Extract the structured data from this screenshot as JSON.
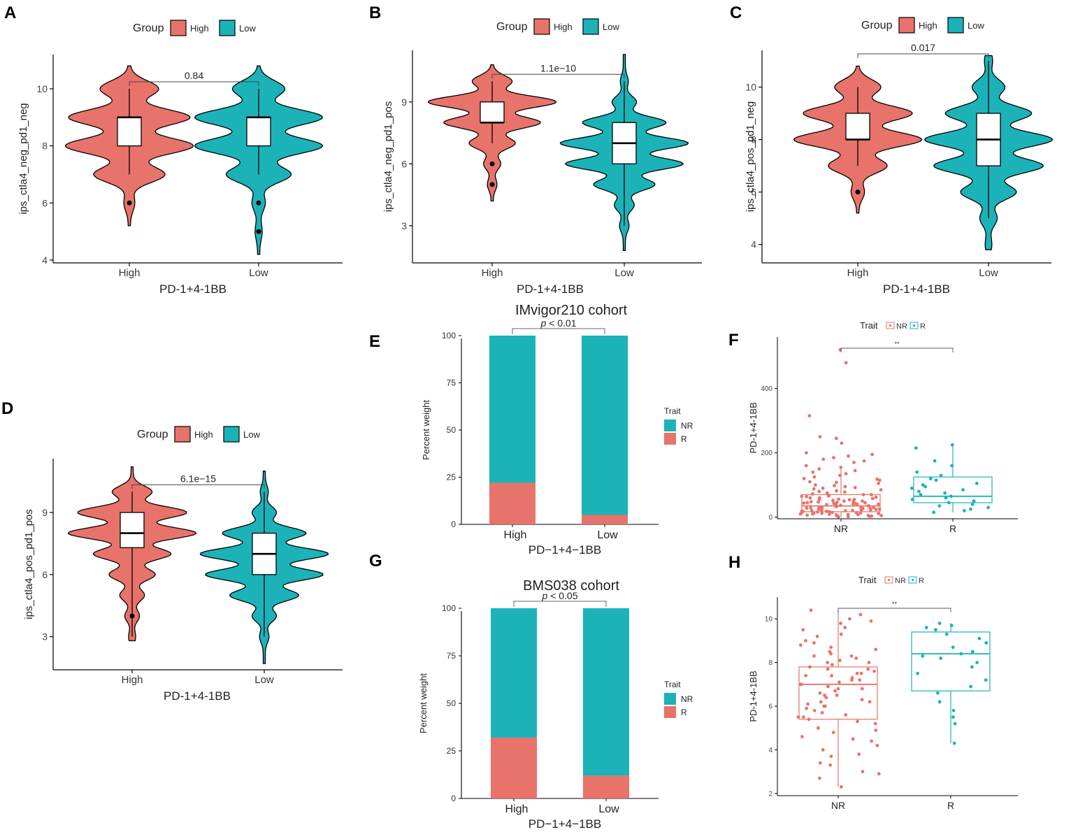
{
  "colors": {
    "high": "#E8736A",
    "low": "#1BB3B8",
    "nr": "#E8736A",
    "r": "#1BB3B8"
  },
  "violin_panels": [
    {
      "id": "A",
      "ylabel": "ips_ctla4_neg_pd1_neg",
      "xlabel": "PD-1+4-1BB",
      "legend": {
        "title": "Group",
        "items": [
          "High",
          "Low"
        ]
      },
      "categories": [
        "High",
        "Low"
      ],
      "yticks": [
        4,
        6,
        8,
        10
      ],
      "ylim": [
        3.9,
        11.2
      ],
      "pvalue": "0.84",
      "groups": [
        {
          "name": "High",
          "q1": 8,
          "median": 9,
          "q3": 9,
          "whisker_low": 7,
          "whisker_high": 10,
          "outliers": [
            6
          ],
          "min": 5.2,
          "max": 10.8,
          "modes": [
            [
              6,
              0.07
            ],
            [
              7,
              0.55
            ],
            [
              8,
              1.0
            ],
            [
              9,
              0.95
            ],
            [
              10,
              0.45
            ]
          ]
        },
        {
          "name": "Low",
          "q1": 8,
          "median": 9,
          "q3": 9,
          "whisker_low": 7,
          "whisker_high": 10,
          "outliers": [
            6,
            5
          ],
          "min": 4.2,
          "max": 10.8,
          "modes": [
            [
              5,
              0.04
            ],
            [
              6,
              0.09
            ],
            [
              7,
              0.5
            ],
            [
              8,
              1.0
            ],
            [
              9,
              1.0
            ],
            [
              10,
              0.4
            ]
          ]
        }
      ]
    },
    {
      "id": "B",
      "ylabel": "ips_ctla4_neg_pd1_pos",
      "xlabel": "PD-1+4-1BB",
      "legend": {
        "title": "Group",
        "items": [
          "High",
          "Low"
        ]
      },
      "categories": [
        "High",
        "Low"
      ],
      "yticks": [
        3,
        6,
        9
      ],
      "ylim": [
        1.2,
        11.5
      ],
      "pvalue": "1.1e−10",
      "groups": [
        {
          "name": "High",
          "q1": 8,
          "median": 8,
          "q3": 9,
          "whisker_low": 7,
          "whisker_high": 10,
          "outliers": [
            6,
            5
          ],
          "min": 4.2,
          "max": 10.8,
          "modes": [
            [
              5,
              0.06
            ],
            [
              6,
              0.12
            ],
            [
              7,
              0.35
            ],
            [
              8,
              0.75
            ],
            [
              9,
              1.0
            ],
            [
              10,
              0.3
            ]
          ]
        },
        {
          "name": "Low",
          "q1": 6,
          "median": 7,
          "q3": 8,
          "whisker_low": 3,
          "whisker_high": 10,
          "outliers": [],
          "min": 1.8,
          "max": 11.3,
          "modes": [
            [
              3,
              0.05
            ],
            [
              4,
              0.12
            ],
            [
              5,
              0.4
            ],
            [
              6,
              0.78
            ],
            [
              7,
              0.85
            ],
            [
              8,
              0.55
            ],
            [
              9,
              0.15
            ],
            [
              10,
              0.04
            ]
          ]
        }
      ]
    },
    {
      "id": "C",
      "ylabel": "ips_ctla4_pos_pd1_neg",
      "xlabel": "PD-1+4-1BB",
      "legend": {
        "title": "Group",
        "items": [
          "High",
          "Low"
        ]
      },
      "categories": [
        "High",
        "Low"
      ],
      "yticks": [
        4,
        6,
        8,
        10
      ],
      "ylim": [
        3.3,
        11.4
      ],
      "pvalue": "0.017",
      "groups": [
        {
          "name": "High",
          "q1": 8,
          "median": 8,
          "q3": 9,
          "whisker_low": 7,
          "whisker_high": 10,
          "outliers": [
            6
          ],
          "min": 5.2,
          "max": 10.8,
          "modes": [
            [
              6,
              0.09
            ],
            [
              7,
              0.45
            ],
            [
              8,
              1.0
            ],
            [
              9,
              0.85
            ],
            [
              10,
              0.35
            ]
          ]
        },
        {
          "name": "Low",
          "q1": 7,
          "median": 8,
          "q3": 9,
          "whisker_low": 5,
          "whisker_high": 11,
          "outliers": [],
          "min": 3.8,
          "max": 11.2,
          "modes": [
            [
              4,
              0.03
            ],
            [
              5,
              0.1
            ],
            [
              6,
              0.35
            ],
            [
              7,
              0.7
            ],
            [
              8,
              0.82
            ],
            [
              9,
              0.55
            ],
            [
              10,
              0.2
            ],
            [
              11,
              0.04
            ]
          ]
        }
      ]
    },
    {
      "id": "D",
      "ylabel": "ips_ctla4_pos_pd1_pos",
      "xlabel": "PD-1+4-1BB",
      "legend": {
        "title": "Group",
        "items": [
          "High",
          "Low"
        ]
      },
      "categories": [
        "High",
        "Low"
      ],
      "yticks": [
        3,
        6,
        9
      ],
      "ylim": [
        1.4,
        11.6
      ],
      "pvalue": "6.1e−15",
      "groups": [
        {
          "name": "High",
          "q1": 7.3,
          "median": 8,
          "q3": 9,
          "whisker_low": 3,
          "whisker_high": 10,
          "outliers": [
            4
          ],
          "min": 2.8,
          "max": 11.2,
          "modes": [
            [
              3,
              0.04
            ],
            [
              4,
              0.1
            ],
            [
              5,
              0.18
            ],
            [
              6,
              0.35
            ],
            [
              7,
              0.6
            ],
            [
              8,
              1.0
            ],
            [
              9,
              0.85
            ],
            [
              10,
              0.3
            ]
          ]
        },
        {
          "name": "Low",
          "q1": 6,
          "median": 7,
          "q3": 8,
          "whisker_low": 3,
          "whisker_high": 10,
          "outliers": [],
          "min": 1.7,
          "max": 11.0,
          "modes": [
            [
              3,
              0.05
            ],
            [
              4,
              0.15
            ],
            [
              5,
              0.45
            ],
            [
              6,
              0.78
            ],
            [
              7,
              0.85
            ],
            [
              8,
              0.55
            ],
            [
              9,
              0.15
            ],
            [
              10,
              0.04
            ]
          ]
        }
      ]
    }
  ],
  "bar_panels": [
    {
      "id": "E",
      "title": "IMvigor210 cohort",
      "ylabel": "Percent weight",
      "xlabel": "PD−1+4−1BB",
      "categories": [
        "High",
        "Low"
      ],
      "yticks": [
        0,
        25,
        50,
        75,
        100
      ],
      "ylim": [
        0,
        100
      ],
      "p_italic": "p",
      "p_rest": " < 0.01",
      "legend": {
        "title": "Trait",
        "items": [
          "NR",
          "R"
        ]
      },
      "series": [
        {
          "name": "R",
          "values": [
            22,
            5
          ]
        },
        {
          "name": "NR",
          "values": [
            78,
            95
          ]
        }
      ]
    },
    {
      "id": "G",
      "title": "BMS038 cohort",
      "ylabel": "Percent weight",
      "xlabel": "PD−1+4−1BB",
      "categories": [
        "High",
        "Low"
      ],
      "yticks": [
        0,
        25,
        50,
        75,
        100
      ],
      "ylim": [
        0,
        100
      ],
      "p_italic": "p",
      "p_rest": " < 0.05",
      "legend": {
        "title": "Trait",
        "items": [
          "NR",
          "R"
        ]
      },
      "series": [
        {
          "name": "R",
          "values": [
            32,
            12
          ]
        },
        {
          "name": "NR",
          "values": [
            68,
            88
          ]
        }
      ]
    }
  ],
  "box_panels": [
    {
      "id": "F",
      "ylabel": "PD-1+4-1BB",
      "legend": {
        "title": "Trait",
        "items": [
          "NR",
          "R"
        ]
      },
      "categories": [
        "NR",
        "R"
      ],
      "yticks": [
        0,
        200,
        400
      ],
      "ylim": [
        -5,
        560
      ],
      "sig": "**",
      "groups": [
        {
          "name": "NR",
          "q1": 17,
          "median": 35,
          "q3": 70,
          "whisker_low": 0,
          "whisker_high": 150,
          "points": [
            520,
            480,
            315,
            250,
            245,
            230,
            200,
            195,
            190,
            185,
            180,
            175,
            170,
            160,
            155,
            150,
            145,
            140,
            135,
            130,
            125,
            120,
            118,
            115,
            110,
            108,
            105,
            100,
            98,
            95,
            92,
            90,
            88,
            85,
            82,
            80,
            78,
            75,
            72,
            70,
            68,
            66,
            64,
            62,
            60,
            58,
            56,
            55,
            54,
            52,
            50,
            49,
            48,
            47,
            46,
            45,
            44,
            43,
            42,
            41,
            40,
            39,
            38,
            37,
            36,
            35,
            34,
            33,
            32,
            31,
            30,
            29,
            28,
            27,
            26,
            25,
            24,
            23,
            22,
            21,
            20,
            19,
            18,
            17,
            16,
            15,
            14,
            13,
            12,
            11,
            10,
            9,
            8,
            7,
            6,
            5,
            4,
            3,
            2,
            1,
            60,
            45,
            30,
            22,
            15,
            10,
            8,
            40,
            55,
            70,
            25,
            35,
            12,
            18,
            28,
            65,
            50,
            5,
            3,
            20
          ]
        },
        {
          "name": "R",
          "q1": 45,
          "median": 65,
          "q3": 125,
          "whisker_low": 15,
          "whisker_high": 220,
          "points": [
            225,
            215,
            175,
            160,
            140,
            130,
            120,
            115,
            105,
            100,
            95,
            90,
            85,
            80,
            75,
            70,
            65,
            60,
            55,
            50,
            45,
            40,
            35,
            30,
            25,
            20,
            15
          ]
        }
      ]
    },
    {
      "id": "H",
      "ylabel": "PD-1+4-1BB",
      "legend": {
        "title": "Trait",
        "items": [
          "NR",
          "R"
        ]
      },
      "categories": [
        "NR",
        "R"
      ],
      "yticks": [
        2,
        4,
        6,
        8,
        10
      ],
      "ylim": [
        1.9,
        11.0
      ],
      "sig": "**",
      "groups": [
        {
          "name": "NR",
          "q1": 5.4,
          "median": 7.0,
          "q3": 7.8,
          "whisker_low": 2.3,
          "whisker_high": 10.4,
          "points": [
            10.4,
            10.2,
            10.0,
            9.9,
            9.8,
            9.6,
            9.5,
            9.3,
            9.2,
            9.0,
            8.9,
            8.8,
            8.7,
            8.6,
            8.5,
            8.4,
            8.3,
            8.2,
            8.1,
            8.0,
            7.9,
            7.8,
            7.7,
            7.6,
            7.5,
            7.4,
            7.3,
            7.2,
            7.1,
            7.0,
            6.9,
            6.8,
            6.7,
            6.6,
            6.5,
            6.4,
            6.3,
            6.2,
            6.1,
            6.0,
            5.9,
            5.8,
            5.7,
            5.6,
            5.5,
            5.4,
            5.3,
            5.2,
            5.0,
            4.9,
            4.8,
            4.6,
            4.5,
            4.4,
            4.2,
            4.0,
            3.8,
            3.7,
            3.4,
            3.3,
            3.0,
            2.9,
            2.7,
            2.3,
            8.0,
            7.5,
            7.0,
            6.5,
            6.0,
            7.2,
            6.8,
            7.7,
            5.5,
            8.3,
            6.2,
            7.4
          ]
        },
        {
          "name": "R",
          "q1": 6.7,
          "median": 8.4,
          "q3": 9.4,
          "whisker_low": 4.3,
          "whisker_high": 9.8,
          "points": [
            9.8,
            9.7,
            9.6,
            9.5,
            9.3,
            9.1,
            8.9,
            8.7,
            8.5,
            8.4,
            8.3,
            8.2,
            8.0,
            7.8,
            7.5,
            7.2,
            6.9,
            6.6,
            6.2,
            5.8,
            5.5,
            5.2,
            4.3
          ]
        }
      ]
    }
  ]
}
